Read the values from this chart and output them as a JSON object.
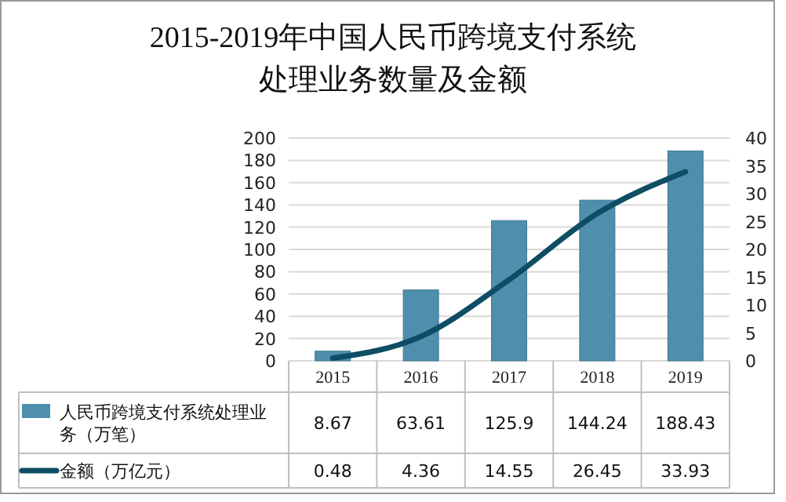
{
  "chart_data": {
    "type": "bar",
    "title": "2015-2019年中国人民币跨境支付系统处理业务数量及金额",
    "categories": [
      "2015",
      "2016",
      "2017",
      "2018",
      "2019"
    ],
    "series": [
      {
        "name": "人民币跨境支付系统处理业务（万笔）",
        "color": "#4f8fae",
        "values": [
          8.67,
          63.61,
          125.9,
          144.24,
          188.43
        ]
      },
      {
        "type": "line",
        "name": "金额（万亿元）",
        "color": "#0e4d64",
        "axis": "y2",
        "values": [
          0.48,
          4.36,
          14.55,
          26.45,
          33.93
        ]
      }
    ],
    "ylim": [
      0,
      200
    ],
    "yticks": [
      0,
      20,
      40,
      60,
      80,
      100,
      120,
      140,
      160,
      180,
      200
    ],
    "y2lim": [
      0,
      40
    ],
    "y2ticks": [
      0,
      5,
      10,
      15,
      20,
      25,
      30,
      35,
      40
    ],
    "grid": "y",
    "legend": "bottom",
    "data_labels": true
  }
}
